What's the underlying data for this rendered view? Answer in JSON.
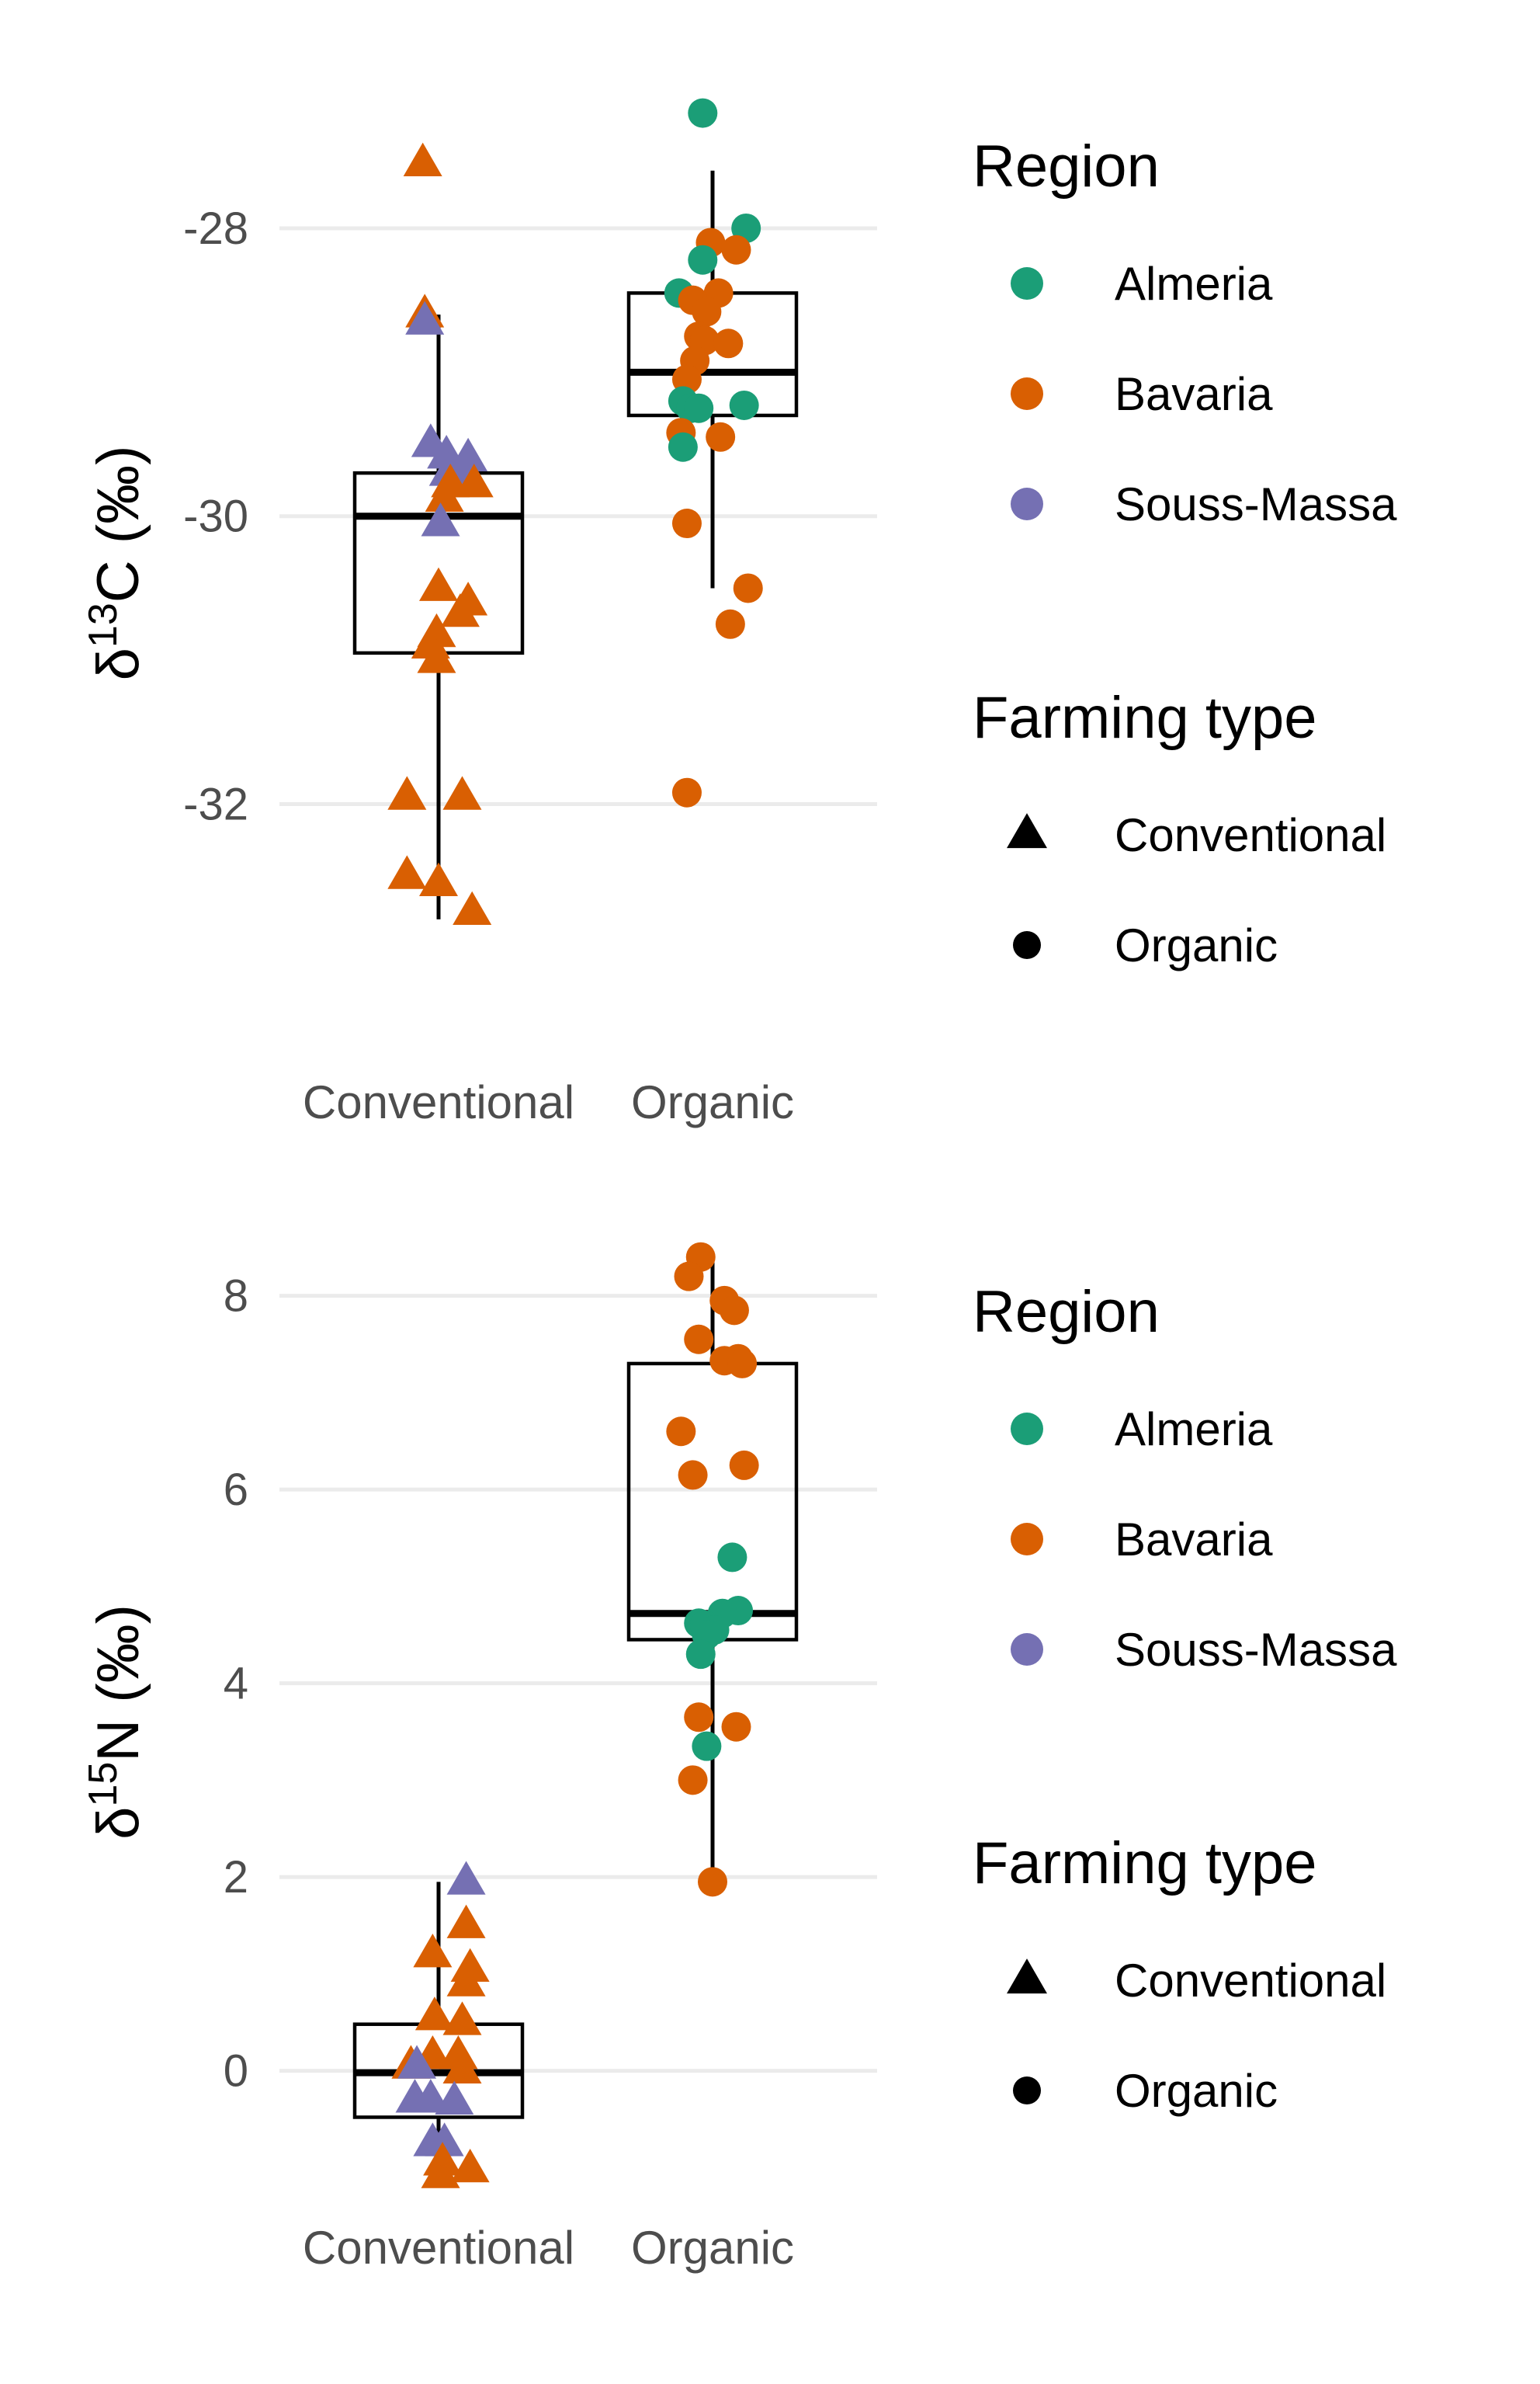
{
  "chart_data": [
    {
      "type": "box",
      "ylabel": {
        "delta": "δ",
        "isotope": "13",
        "element": "C",
        "unit": "(‰)"
      },
      "categories": [
        "Conventional",
        "Organic"
      ],
      "yticks": [
        -28,
        -30,
        -32
      ],
      "ylim": [
        -33.75,
        -26.9
      ],
      "grid": true,
      "boxes": [
        {
          "category": "Conventional",
          "whisker_low": -32.8,
          "q1": -30.95,
          "median": -30.0,
          "q3": -29.7,
          "whisker_high": -28.6
        },
        {
          "category": "Organic",
          "whisker_low": -30.5,
          "q1": -29.3,
          "median": -29.0,
          "q3": -28.45,
          "whisker_high": -27.6
        }
      ],
      "points": [
        {
          "x": -0.08,
          "y": -27.55,
          "region": "Bavaria",
          "type": "Conventional"
        },
        {
          "x": -0.07,
          "y": -28.6,
          "region": "Bavaria",
          "type": "Conventional"
        },
        {
          "x": -0.07,
          "y": -28.65,
          "region": "Souss-Massa",
          "type": "Conventional"
        },
        {
          "x": -0.04,
          "y": -29.5,
          "region": "Souss-Massa",
          "type": "Conventional"
        },
        {
          "x": 0.04,
          "y": -29.58,
          "region": "Souss-Massa",
          "type": "Conventional"
        },
        {
          "x": 0.15,
          "y": -29.6,
          "region": "Souss-Massa",
          "type": "Conventional"
        },
        {
          "x": 0.05,
          "y": -29.7,
          "region": "Souss-Massa",
          "type": "Conventional"
        },
        {
          "x": 0.12,
          "y": -29.72,
          "region": "Souss-Massa",
          "type": "Conventional"
        },
        {
          "x": 0.06,
          "y": -29.78,
          "region": "Bavaria",
          "type": "Conventional"
        },
        {
          "x": 0.18,
          "y": -29.78,
          "region": "Bavaria",
          "type": "Conventional"
        },
        {
          "x": 0.03,
          "y": -29.88,
          "region": "Bavaria",
          "type": "Conventional"
        },
        {
          "x": 0.01,
          "y": -30.05,
          "region": "Souss-Massa",
          "type": "Conventional"
        },
        {
          "x": 0.0,
          "y": -30.5,
          "region": "Bavaria",
          "type": "Conventional"
        },
        {
          "x": 0.15,
          "y": -30.6,
          "region": "Bavaria",
          "type": "Conventional"
        },
        {
          "x": 0.11,
          "y": -30.68,
          "region": "Bavaria",
          "type": "Conventional"
        },
        {
          "x": -0.01,
          "y": -30.82,
          "region": "Bavaria",
          "type": "Conventional"
        },
        {
          "x": -0.04,
          "y": -30.9,
          "region": "Bavaria",
          "type": "Conventional"
        },
        {
          "x": -0.01,
          "y": -31.0,
          "region": "Bavaria",
          "type": "Conventional"
        },
        {
          "x": -0.16,
          "y": -31.95,
          "region": "Bavaria",
          "type": "Conventional"
        },
        {
          "x": 0.12,
          "y": -31.95,
          "region": "Bavaria",
          "type": "Conventional"
        },
        {
          "x": -0.16,
          "y": -32.5,
          "region": "Bavaria",
          "type": "Conventional"
        },
        {
          "x": 0.0,
          "y": -32.55,
          "region": "Bavaria",
          "type": "Conventional"
        },
        {
          "x": 0.17,
          "y": -32.75,
          "region": "Bavaria",
          "type": "Conventional"
        },
        {
          "x": -0.05,
          "y": -27.2,
          "region": "Almeria",
          "type": "Organic"
        },
        {
          "x": 0.17,
          "y": -28.0,
          "region": "Almeria",
          "type": "Organic"
        },
        {
          "x": -0.01,
          "y": -28.1,
          "region": "Bavaria",
          "type": "Organic"
        },
        {
          "x": 0.12,
          "y": -28.15,
          "region": "Bavaria",
          "type": "Organic"
        },
        {
          "x": -0.05,
          "y": -28.22,
          "region": "Almeria",
          "type": "Organic"
        },
        {
          "x": -0.17,
          "y": -28.45,
          "region": "Almeria",
          "type": "Organic"
        },
        {
          "x": 0.03,
          "y": -28.45,
          "region": "Bavaria",
          "type": "Organic"
        },
        {
          "x": -0.1,
          "y": -28.5,
          "region": "Bavaria",
          "type": "Organic"
        },
        {
          "x": -0.03,
          "y": -28.58,
          "region": "Bavaria",
          "type": "Organic"
        },
        {
          "x": -0.07,
          "y": -28.75,
          "region": "Bavaria",
          "type": "Organic"
        },
        {
          "x": -0.04,
          "y": -28.78,
          "region": "Bavaria",
          "type": "Organic"
        },
        {
          "x": 0.08,
          "y": -28.8,
          "region": "Bavaria",
          "type": "Organic"
        },
        {
          "x": -0.09,
          "y": -28.92,
          "region": "Bavaria",
          "type": "Organic"
        },
        {
          "x": -0.13,
          "y": -29.05,
          "region": "Bavaria",
          "type": "Organic"
        },
        {
          "x": -0.15,
          "y": -29.2,
          "region": "Almeria",
          "type": "Organic"
        },
        {
          "x": -0.11,
          "y": -29.25,
          "region": "Almeria",
          "type": "Organic"
        },
        {
          "x": -0.07,
          "y": -29.25,
          "region": "Almeria",
          "type": "Organic"
        },
        {
          "x": 0.16,
          "y": -29.23,
          "region": "Almeria",
          "type": "Organic"
        },
        {
          "x": -0.16,
          "y": -29.42,
          "region": "Bavaria",
          "type": "Organic"
        },
        {
          "x": 0.04,
          "y": -29.45,
          "region": "Bavaria",
          "type": "Organic"
        },
        {
          "x": -0.15,
          "y": -29.52,
          "region": "Almeria",
          "type": "Organic"
        },
        {
          "x": -0.13,
          "y": -30.05,
          "region": "Bavaria",
          "type": "Organic"
        },
        {
          "x": 0.18,
          "y": -30.5,
          "region": "Bavaria",
          "type": "Organic"
        },
        {
          "x": 0.09,
          "y": -30.75,
          "region": "Bavaria",
          "type": "Organic"
        },
        {
          "x": -0.13,
          "y": -31.92,
          "region": "Bavaria",
          "type": "Organic"
        }
      ]
    },
    {
      "type": "box",
      "ylabel": {
        "delta": "δ",
        "isotope": "15",
        "element": "N",
        "unit": "(‰)"
      },
      "categories": [
        "Conventional",
        "Organic"
      ],
      "yticks": [
        8,
        6,
        4,
        2,
        0
      ],
      "ylim": [
        -1.35,
        8.55
      ],
      "grid": true,
      "boxes": [
        {
          "category": "Conventional",
          "whisker_low": -0.8,
          "q1": -0.48,
          "median": -0.02,
          "q3": 0.48,
          "whisker_high": 1.95
        },
        {
          "category": "Organic",
          "whisker_low": 1.95,
          "q1": 4.45,
          "median": 4.72,
          "q3": 7.3,
          "whisker_high": 8.35
        }
      ],
      "points": [
        {
          "x": 0.14,
          "y": 1.95,
          "region": "Souss-Massa",
          "type": "Conventional"
        },
        {
          "x": 0.14,
          "y": 1.5,
          "region": "Bavaria",
          "type": "Conventional"
        },
        {
          "x": -0.03,
          "y": 1.2,
          "region": "Bavaria",
          "type": "Conventional"
        },
        {
          "x": 0.16,
          "y": 1.05,
          "region": "Bavaria",
          "type": "Conventional"
        },
        {
          "x": 0.14,
          "y": 0.9,
          "region": "Bavaria",
          "type": "Conventional"
        },
        {
          "x": -0.02,
          "y": 0.55,
          "region": "Bavaria",
          "type": "Conventional"
        },
        {
          "x": 0.12,
          "y": 0.5,
          "region": "Bavaria",
          "type": "Conventional"
        },
        {
          "x": -0.03,
          "y": 0.15,
          "region": "Bavaria",
          "type": "Conventional"
        },
        {
          "x": 0.1,
          "y": 0.15,
          "region": "Bavaria",
          "type": "Conventional"
        },
        {
          "x": -0.14,
          "y": 0.05,
          "region": "Bavaria",
          "type": "Conventional"
        },
        {
          "x": -0.11,
          "y": 0.05,
          "region": "Souss-Massa",
          "type": "Conventional"
        },
        {
          "x": 0.12,
          "y": 0.0,
          "region": "Bavaria",
          "type": "Conventional"
        },
        {
          "x": -0.12,
          "y": -0.3,
          "region": "Souss-Massa",
          "type": "Conventional"
        },
        {
          "x": -0.04,
          "y": -0.3,
          "region": "Souss-Massa",
          "type": "Conventional"
        },
        {
          "x": 0.08,
          "y": -0.32,
          "region": "Souss-Massa",
          "type": "Conventional"
        },
        {
          "x": -0.03,
          "y": -0.75,
          "region": "Souss-Massa",
          "type": "Conventional"
        },
        {
          "x": 0.03,
          "y": -0.75,
          "region": "Souss-Massa",
          "type": "Conventional"
        },
        {
          "x": 0.02,
          "y": -0.95,
          "region": "Bavaria",
          "type": "Conventional"
        },
        {
          "x": 0.16,
          "y": -1.02,
          "region": "Bavaria",
          "type": "Conventional"
        },
        {
          "x": 0.01,
          "y": -1.08,
          "region": "Bavaria",
          "type": "Conventional"
        },
        {
          "x": -0.06,
          "y": 8.4,
          "region": "Bavaria",
          "type": "Organic"
        },
        {
          "x": -0.12,
          "y": 8.2,
          "region": "Bavaria",
          "type": "Organic"
        },
        {
          "x": 0.06,
          "y": 7.95,
          "region": "Bavaria",
          "type": "Organic"
        },
        {
          "x": 0.11,
          "y": 7.85,
          "region": "Bavaria",
          "type": "Organic"
        },
        {
          "x": -0.07,
          "y": 7.55,
          "region": "Bavaria",
          "type": "Organic"
        },
        {
          "x": 0.13,
          "y": 7.35,
          "region": "Bavaria",
          "type": "Organic"
        },
        {
          "x": 0.06,
          "y": 7.33,
          "region": "Bavaria",
          "type": "Organic"
        },
        {
          "x": 0.15,
          "y": 7.3,
          "region": "Bavaria",
          "type": "Organic"
        },
        {
          "x": -0.16,
          "y": 6.6,
          "region": "Bavaria",
          "type": "Organic"
        },
        {
          "x": 0.16,
          "y": 6.25,
          "region": "Bavaria",
          "type": "Organic"
        },
        {
          "x": -0.1,
          "y": 6.15,
          "region": "Bavaria",
          "type": "Organic"
        },
        {
          "x": 0.1,
          "y": 5.3,
          "region": "Almeria",
          "type": "Organic"
        },
        {
          "x": 0.13,
          "y": 4.75,
          "region": "Almeria",
          "type": "Organic"
        },
        {
          "x": 0.05,
          "y": 4.72,
          "region": "Almeria",
          "type": "Organic"
        },
        {
          "x": -0.07,
          "y": 4.62,
          "region": "Almeria",
          "type": "Organic"
        },
        {
          "x": -0.04,
          "y": 4.6,
          "region": "Almeria",
          "type": "Organic"
        },
        {
          "x": 0.01,
          "y": 4.55,
          "region": "Almeria",
          "type": "Organic"
        },
        {
          "x": -0.03,
          "y": 4.5,
          "region": "Almeria",
          "type": "Organic"
        },
        {
          "x": -0.06,
          "y": 4.3,
          "region": "Almeria",
          "type": "Organic"
        },
        {
          "x": -0.07,
          "y": 3.65,
          "region": "Bavaria",
          "type": "Organic"
        },
        {
          "x": 0.12,
          "y": 3.55,
          "region": "Bavaria",
          "type": "Organic"
        },
        {
          "x": -0.03,
          "y": 3.35,
          "region": "Almeria",
          "type": "Organic"
        },
        {
          "x": -0.1,
          "y": 3.0,
          "region": "Bavaria",
          "type": "Organic"
        },
        {
          "x": 0.0,
          "y": 1.95,
          "region": "Bavaria",
          "type": "Organic"
        }
      ]
    }
  ],
  "legend": {
    "region_title": "Region",
    "regions": [
      {
        "name": "Almeria",
        "color": "#1b9e77"
      },
      {
        "name": "Bavaria",
        "color": "#d95f02"
      },
      {
        "name": "Souss-Massa",
        "color": "#7570b3"
      }
    ],
    "type_title": "Farming type",
    "types": [
      {
        "name": "Conventional",
        "shape": "triangle-icon"
      },
      {
        "name": "Organic",
        "shape": "circle-icon"
      }
    ]
  },
  "colors": {
    "grid": "#ebebeb",
    "box": "#000000",
    "tick": "#4d4d4d"
  }
}
